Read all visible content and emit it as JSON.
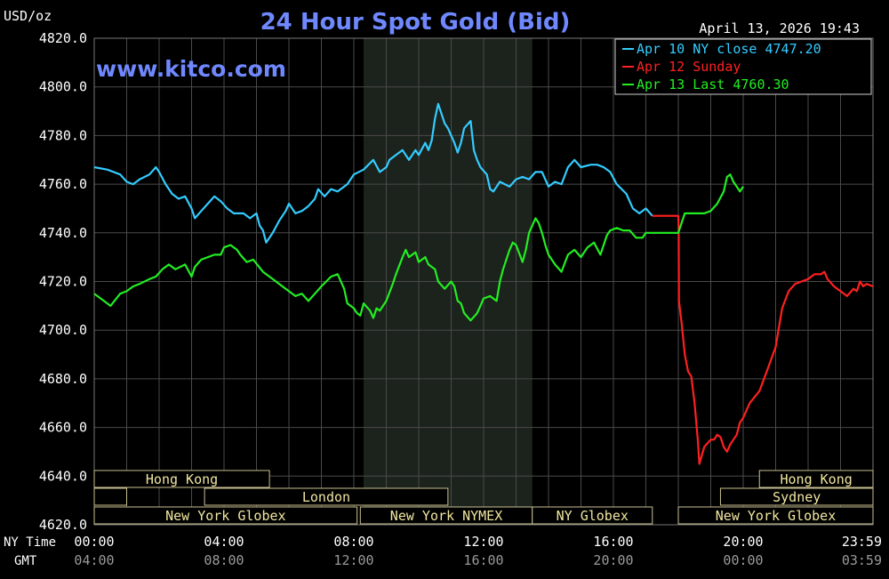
{
  "chart_data": {
    "type": "line",
    "title": "24 Hour Spot Gold (Bid)",
    "watermark": "www.kitco.com",
    "timestamp": "April 13, 2026 19:43",
    "ylabel": "USD/oz",
    "ylim": [
      4620,
      4820
    ],
    "yticks": [
      "4620.0",
      "4640.0",
      "4660.0",
      "4680.0",
      "4700.0",
      "4720.0",
      "4740.0",
      "4760.0",
      "4780.0",
      "4800.0",
      "4820.0"
    ],
    "xlim": [
      0,
      24
    ],
    "ny_time_label": "NY Time",
    "gmt_label": "GMT",
    "xticks": [
      {
        "t": 0,
        "ny": "00:00",
        "gmt": "04:00"
      },
      {
        "t": 4,
        "ny": "04:00",
        "gmt": "08:00"
      },
      {
        "t": 8,
        "ny": "08:00",
        "gmt": "12:00"
      },
      {
        "t": 12,
        "ny": "12:00",
        "gmt": "16:00"
      },
      {
        "t": 16,
        "ny": "16:00",
        "gmt": "20:00"
      },
      {
        "t": 20,
        "ny": "20:00",
        "gmt": "00:00"
      },
      {
        "t": 24,
        "ny": "23:59",
        "gmt": "03:59"
      }
    ],
    "shaded_range": [
      8.3,
      13.5
    ],
    "closed_box_start": 17.0,
    "legend": [
      {
        "text": "Apr 10 NY close 4747.20",
        "color": "#33ccff"
      },
      {
        "text": "Apr 12 Sunday",
        "color": "#ff2020"
      },
      {
        "text": "Apr 13 Last 4760.30",
        "color": "#22ee22"
      }
    ],
    "series": [
      {
        "name": "Apr 10 NY close 4747.20",
        "color": "#33ccff",
        "points": [
          [
            0,
            4767
          ],
          [
            0.4,
            4766
          ],
          [
            0.8,
            4764
          ],
          [
            1.0,
            4761
          ],
          [
            1.2,
            4760
          ],
          [
            1.4,
            4762
          ],
          [
            1.7,
            4764
          ],
          [
            1.9,
            4767
          ],
          [
            2.0,
            4765
          ],
          [
            2.2,
            4760
          ],
          [
            2.4,
            4756
          ],
          [
            2.6,
            4754
          ],
          [
            2.8,
            4755
          ],
          [
            3.0,
            4750
          ],
          [
            3.1,
            4746
          ],
          [
            3.3,
            4749
          ],
          [
            3.5,
            4752
          ],
          [
            3.7,
            4755
          ],
          [
            3.9,
            4753
          ],
          [
            4.1,
            4750
          ],
          [
            4.3,
            4748
          ],
          [
            4.6,
            4748
          ],
          [
            4.8,
            4746
          ],
          [
            5.0,
            4748
          ],
          [
            5.1,
            4743
          ],
          [
            5.2,
            4741
          ],
          [
            5.3,
            4736
          ],
          [
            5.5,
            4740
          ],
          [
            5.7,
            4745
          ],
          [
            5.9,
            4749
          ],
          [
            6.0,
            4752
          ],
          [
            6.2,
            4748
          ],
          [
            6.4,
            4749
          ],
          [
            6.6,
            4751
          ],
          [
            6.8,
            4754
          ],
          [
            6.9,
            4758
          ],
          [
            7.1,
            4755
          ],
          [
            7.3,
            4758
          ],
          [
            7.5,
            4757
          ],
          [
            7.8,
            4760
          ],
          [
            8.0,
            4764
          ],
          [
            8.3,
            4766
          ],
          [
            8.6,
            4770
          ],
          [
            8.8,
            4765
          ],
          [
            9.0,
            4767
          ],
          [
            9.1,
            4770
          ],
          [
            9.3,
            4772
          ],
          [
            9.5,
            4774
          ],
          [
            9.7,
            4770
          ],
          [
            9.9,
            4774
          ],
          [
            10.0,
            4772
          ],
          [
            10.2,
            4777
          ],
          [
            10.3,
            4774
          ],
          [
            10.4,
            4778
          ],
          [
            10.5,
            4787
          ],
          [
            10.6,
            4793
          ],
          [
            10.8,
            4785
          ],
          [
            10.9,
            4783
          ],
          [
            11.0,
            4780
          ],
          [
            11.1,
            4777
          ],
          [
            11.2,
            4773
          ],
          [
            11.3,
            4777
          ],
          [
            11.4,
            4783
          ],
          [
            11.6,
            4786
          ],
          [
            11.7,
            4774
          ],
          [
            11.8,
            4770
          ],
          [
            11.9,
            4767
          ],
          [
            12.1,
            4764
          ],
          [
            12.2,
            4758
          ],
          [
            12.3,
            4757
          ],
          [
            12.5,
            4761
          ],
          [
            12.8,
            4759
          ],
          [
            13.0,
            4762
          ],
          [
            13.2,
            4763
          ],
          [
            13.4,
            4762
          ],
          [
            13.6,
            4765
          ],
          [
            13.8,
            4765
          ],
          [
            14.0,
            4759
          ],
          [
            14.2,
            4761
          ],
          [
            14.4,
            4760
          ],
          [
            14.6,
            4767
          ],
          [
            14.8,
            4770
          ],
          [
            15.0,
            4767
          ],
          [
            15.3,
            4768
          ],
          [
            15.5,
            4768
          ],
          [
            15.7,
            4767
          ],
          [
            15.9,
            4765
          ],
          [
            16.1,
            4760
          ],
          [
            16.4,
            4756
          ],
          [
            16.6,
            4750
          ],
          [
            16.8,
            4748
          ],
          [
            17.0,
            4750
          ],
          [
            17.2,
            4747
          ]
        ]
      },
      {
        "name": "Apr 12 Sunday",
        "color": "#ff2020",
        "points": [
          [
            17.2,
            4747
          ],
          [
            17.8,
            4747
          ],
          [
            18.0,
            4747
          ],
          [
            18.01,
            4740
          ],
          [
            18.02,
            4712
          ],
          [
            18.1,
            4703
          ],
          [
            18.2,
            4690
          ],
          [
            18.3,
            4683
          ],
          [
            18.4,
            4681
          ],
          [
            18.5,
            4670
          ],
          [
            18.6,
            4655
          ],
          [
            18.65,
            4645
          ],
          [
            18.8,
            4652
          ],
          [
            19.0,
            4655
          ],
          [
            19.1,
            4655
          ],
          [
            19.2,
            4657
          ],
          [
            19.3,
            4656
          ],
          [
            19.4,
            4652
          ],
          [
            19.5,
            4650
          ],
          [
            19.6,
            4653
          ],
          [
            19.8,
            4657
          ],
          [
            19.9,
            4662
          ],
          [
            20.0,
            4664
          ],
          [
            20.2,
            4670
          ],
          [
            20.5,
            4675
          ],
          [
            20.7,
            4682
          ],
          [
            21.0,
            4693
          ],
          [
            21.2,
            4709
          ],
          [
            21.4,
            4716
          ],
          [
            21.6,
            4719
          ],
          [
            21.8,
            4720
          ],
          [
            22.0,
            4721
          ],
          [
            22.2,
            4723
          ],
          [
            22.4,
            4723
          ],
          [
            22.5,
            4724
          ],
          [
            22.6,
            4721
          ],
          [
            22.8,
            4718
          ],
          [
            22.9,
            4717
          ],
          [
            23.0,
            4716
          ],
          [
            23.2,
            4714
          ],
          [
            23.4,
            4717
          ],
          [
            23.5,
            4716
          ],
          [
            23.6,
            4720
          ],
          [
            23.7,
            4718
          ],
          [
            23.8,
            4719
          ],
          [
            24.0,
            4718
          ]
        ]
      },
      {
        "name": "Apr 13 Last 4760.30",
        "color": "#22ee22",
        "points": [
          [
            0,
            4715
          ],
          [
            0.3,
            4712
          ],
          [
            0.5,
            4710
          ],
          [
            0.8,
            4715
          ],
          [
            1.0,
            4716
          ],
          [
            1.2,
            4718
          ],
          [
            1.4,
            4719
          ],
          [
            1.7,
            4721
          ],
          [
            1.9,
            4722
          ],
          [
            2.1,
            4725
          ],
          [
            2.3,
            4727
          ],
          [
            2.5,
            4725
          ],
          [
            2.8,
            4727
          ],
          [
            3.0,
            4722
          ],
          [
            3.1,
            4726
          ],
          [
            3.3,
            4729
          ],
          [
            3.5,
            4730
          ],
          [
            3.7,
            4731
          ],
          [
            3.9,
            4731
          ],
          [
            4.0,
            4734
          ],
          [
            4.2,
            4735
          ],
          [
            4.4,
            4733
          ],
          [
            4.5,
            4731
          ],
          [
            4.7,
            4728
          ],
          [
            4.9,
            4729
          ],
          [
            5.2,
            4724
          ],
          [
            5.5,
            4721
          ],
          [
            5.8,
            4718
          ],
          [
            6.0,
            4716
          ],
          [
            6.2,
            4714
          ],
          [
            6.4,
            4715
          ],
          [
            6.6,
            4712
          ],
          [
            6.8,
            4715
          ],
          [
            7.0,
            4718
          ],
          [
            7.3,
            4722
          ],
          [
            7.5,
            4723
          ],
          [
            7.7,
            4717
          ],
          [
            7.8,
            4711
          ],
          [
            8.0,
            4709
          ],
          [
            8.1,
            4707
          ],
          [
            8.2,
            4706
          ],
          [
            8.3,
            4711
          ],
          [
            8.5,
            4708
          ],
          [
            8.6,
            4705
          ],
          [
            8.7,
            4709
          ],
          [
            8.8,
            4708
          ],
          [
            9.0,
            4712
          ],
          [
            9.2,
            4719
          ],
          [
            9.3,
            4723
          ],
          [
            9.5,
            4730
          ],
          [
            9.6,
            4733
          ],
          [
            9.7,
            4730
          ],
          [
            9.9,
            4732
          ],
          [
            10.0,
            4728
          ],
          [
            10.2,
            4730
          ],
          [
            10.3,
            4727
          ],
          [
            10.5,
            4725
          ],
          [
            10.6,
            4720
          ],
          [
            10.8,
            4717
          ],
          [
            11.0,
            4720
          ],
          [
            11.1,
            4718
          ],
          [
            11.2,
            4712
          ],
          [
            11.3,
            4711
          ],
          [
            11.4,
            4707
          ],
          [
            11.6,
            4704
          ],
          [
            11.8,
            4707
          ],
          [
            11.9,
            4710
          ],
          [
            12.0,
            4713
          ],
          [
            12.2,
            4714
          ],
          [
            12.4,
            4712
          ],
          [
            12.5,
            4720
          ],
          [
            12.6,
            4725
          ],
          [
            12.8,
            4733
          ],
          [
            12.9,
            4736
          ],
          [
            13.0,
            4735
          ],
          [
            13.2,
            4728
          ],
          [
            13.3,
            4733
          ],
          [
            13.4,
            4740
          ],
          [
            13.6,
            4746
          ],
          [
            13.7,
            4744
          ],
          [
            13.8,
            4740
          ],
          [
            13.9,
            4735
          ],
          [
            14.0,
            4731
          ],
          [
            14.2,
            4727
          ],
          [
            14.4,
            4724
          ],
          [
            14.6,
            4731
          ],
          [
            14.8,
            4733
          ],
          [
            15.0,
            4730
          ],
          [
            15.2,
            4734
          ],
          [
            15.4,
            4736
          ],
          [
            15.6,
            4731
          ],
          [
            15.8,
            4739
          ],
          [
            15.9,
            4741
          ],
          [
            16.1,
            4742
          ],
          [
            16.3,
            4741
          ],
          [
            16.5,
            4741
          ],
          [
            16.7,
            4738
          ],
          [
            16.9,
            4738
          ],
          [
            17.0,
            4740
          ],
          [
            17.2,
            4740
          ],
          [
            17.5,
            4740
          ],
          [
            18.0,
            4740
          ],
          [
            18.2,
            4748
          ],
          [
            18.4,
            4748
          ],
          [
            18.6,
            4748
          ],
          [
            18.8,
            4748
          ],
          [
            19.0,
            4749
          ],
          [
            19.2,
            4752
          ],
          [
            19.4,
            4757
          ],
          [
            19.5,
            4763
          ],
          [
            19.6,
            4764
          ],
          [
            19.7,
            4761
          ],
          [
            19.8,
            4759
          ],
          [
            19.9,
            4757
          ],
          [
            20.0,
            4759
          ]
        ]
      }
    ],
    "sessions": [
      {
        "label": "Hong Kong",
        "start": 0,
        "end": 5.4,
        "row": 0
      },
      {
        "label": "",
        "start": 0,
        "end": 1.0,
        "row": 1
      },
      {
        "label": "London",
        "start": 3.4,
        "end": 10.9,
        "row": 1
      },
      {
        "label": "New York Globex",
        "start": 0,
        "end": 8.1,
        "row": 2
      },
      {
        "label": "New York NYMEX",
        "start": 8.2,
        "end": 13.5,
        "row": 2
      },
      {
        "label": "NY Globex",
        "start": 13.5,
        "end": 17.2,
        "row": 2
      },
      {
        "label": "Hong Kong",
        "start": 20.5,
        "end": 24,
        "row": 0
      },
      {
        "label": "Sydney",
        "start": 19.3,
        "end": 24,
        "row": 1
      },
      {
        "label": "New York Globex",
        "start": 18.0,
        "end": 24,
        "row": 2
      }
    ]
  }
}
